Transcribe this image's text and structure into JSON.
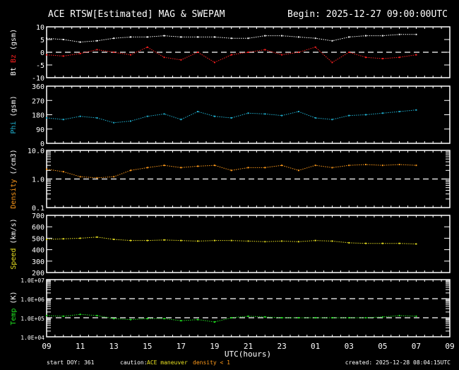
{
  "title": "ACE RTSW[Estimated] MAG & SWEPAM",
  "begin": "Begin: 2025-12-27 09:00:00UTC",
  "footer": {
    "start_doy": "start DOY: 361",
    "caution_label": "caution:",
    "caution_maneuver": "ACE maneuver",
    "caution_density": "density < 1",
    "created": "created: 2025-12-28 08:04:15UTC"
  },
  "colors": {
    "bt": "#ffffff",
    "bz": "#ff2020",
    "phi": "#20b0d0",
    "density": "#ff9a1a",
    "speed": "#e8e020",
    "temp": "#20e020",
    "maneuver": "#e8e020"
  },
  "chart_data": [
    {
      "type": "scatter",
      "ylabel_parts": [
        {
          "text": "Bt",
          "color": "#ffffff"
        },
        {
          "text": "Bz",
          "color": "#ff2020"
        },
        {
          "text": "(gsm)",
          "color": "#ffffff"
        }
      ],
      "ylim": [
        -10,
        10
      ],
      "scale": "linear",
      "yticks": [
        10,
        5,
        0,
        -5,
        -10
      ],
      "ytick_labels": [
        "10",
        "5",
        "0",
        "-5",
        "-10"
      ],
      "dashed_refs": [
        0
      ],
      "series": [
        {
          "name": "Bt",
          "color": "#ffffff",
          "values": [
            5.5,
            5,
            4,
            4.5,
            5.5,
            6,
            6,
            6.5,
            6,
            6,
            6,
            5.5,
            5.5,
            6.5,
            6.5,
            6,
            5.5,
            4.5,
            6,
            6.5,
            6.5,
            7,
            7
          ]
        },
        {
          "name": "Bz",
          "color": "#ff2020",
          "values": [
            -1,
            -1.5,
            -0.5,
            1,
            0,
            -1,
            2,
            -2,
            -3,
            0,
            -4,
            -1,
            0,
            1,
            -1,
            0,
            2,
            -4,
            0,
            -2,
            -2.5,
            -2,
            -1
          ]
        }
      ]
    },
    {
      "type": "scatter",
      "ylabel_parts": [
        {
          "text": "Phi",
          "color": "#20b0d0"
        },
        {
          "text": "(gsm)",
          "color": "#ffffff"
        }
      ],
      "ylim": [
        0,
        360
      ],
      "scale": "linear",
      "yticks": [
        360,
        270,
        180,
        90,
        0
      ],
      "ytick_labels": [
        "360",
        "270",
        "180",
        "90",
        "0"
      ],
      "dashed_refs": [],
      "series": [
        {
          "name": "Phi",
          "color": "#20b0d0",
          "values": [
            160,
            150,
            170,
            160,
            130,
            140,
            170,
            185,
            150,
            200,
            170,
            160,
            190,
            185,
            175,
            200,
            160,
            150,
            175,
            180,
            190,
            200,
            210
          ]
        }
      ]
    },
    {
      "type": "scatter",
      "ylabel_parts": [
        {
          "text": "Density",
          "color": "#ff9a1a"
        },
        {
          "text": "(/cm3)",
          "color": "#ffffff"
        }
      ],
      "ylim": [
        0.1,
        10
      ],
      "scale": "log",
      "yticks": [
        10,
        1,
        0.1
      ],
      "ytick_labels": [
        "10.0",
        "1.0",
        "0.1"
      ],
      "dashed_refs": [
        1
      ],
      "series": [
        {
          "name": "Density",
          "color": "#ff9a1a",
          "values": [
            2.2,
            1.8,
            1.2,
            1.1,
            1.2,
            2,
            2.5,
            3,
            2.5,
            2.8,
            3,
            2,
            2.5,
            2.5,
            3,
            2,
            3,
            2.5,
            3,
            3.2,
            3,
            3.2,
            3
          ]
        }
      ]
    },
    {
      "type": "scatter",
      "ylabel_parts": [
        {
          "text": "Speed",
          "color": "#e8e020"
        },
        {
          "text": "(km/s)",
          "color": "#ffffff"
        }
      ],
      "ylim": [
        200,
        700
      ],
      "scale": "linear",
      "yticks": [
        700,
        600,
        500,
        400,
        300,
        200
      ],
      "ytick_labels": [
        "700",
        "600",
        "500",
        "400",
        "300",
        "200"
      ],
      "dashed_refs": [],
      "series": [
        {
          "name": "Speed",
          "color": "#e8e020",
          "values": [
            490,
            495,
            500,
            510,
            490,
            480,
            480,
            485,
            480,
            475,
            480,
            480,
            475,
            470,
            475,
            470,
            480,
            475,
            460,
            455,
            455,
            455,
            450
          ]
        }
      ]
    },
    {
      "type": "scatter",
      "ylabel_parts": [
        {
          "text": "Temp",
          "color": "#20e020"
        },
        {
          "text": "(K)",
          "color": "#ffffff"
        }
      ],
      "ylim": [
        10000,
        10000000
      ],
      "scale": "log",
      "yticks": [
        10000000,
        1000000,
        100000,
        10000
      ],
      "ytick_labels": [
        "1.0E+07",
        "1.0E+06",
        "1.0E+05",
        "1.0E+04"
      ],
      "dashed_refs": [
        1000000,
        100000
      ],
      "series": [
        {
          "name": "Temp",
          "color": "#20e020",
          "values": [
            130000,
            120000,
            150000,
            130000,
            90000,
            80000,
            90000,
            90000,
            70000,
            80000,
            60000,
            100000,
            120000,
            110000,
            100000,
            100000,
            100000,
            100000,
            100000,
            100000,
            110000,
            130000,
            120000
          ]
        }
      ]
    }
  ],
  "x_axis": {
    "label": "UTC(hours)",
    "times": [
      "09:00",
      "10:00",
      "11:00",
      "12:00",
      "13:00",
      "14:00",
      "15:00",
      "16:00",
      "17:00",
      "18:00",
      "19:00",
      "20:00",
      "21:00",
      "22:00",
      "23:00",
      "00:00",
      "01:00",
      "02:00",
      "03:00",
      "04:00",
      "05:00",
      "06:00",
      "07:00"
    ],
    "tick_labels": [
      "09",
      "11",
      "13",
      "15",
      "17",
      "19",
      "21",
      "23",
      "01",
      "03",
      "05",
      "07",
      "09"
    ]
  }
}
